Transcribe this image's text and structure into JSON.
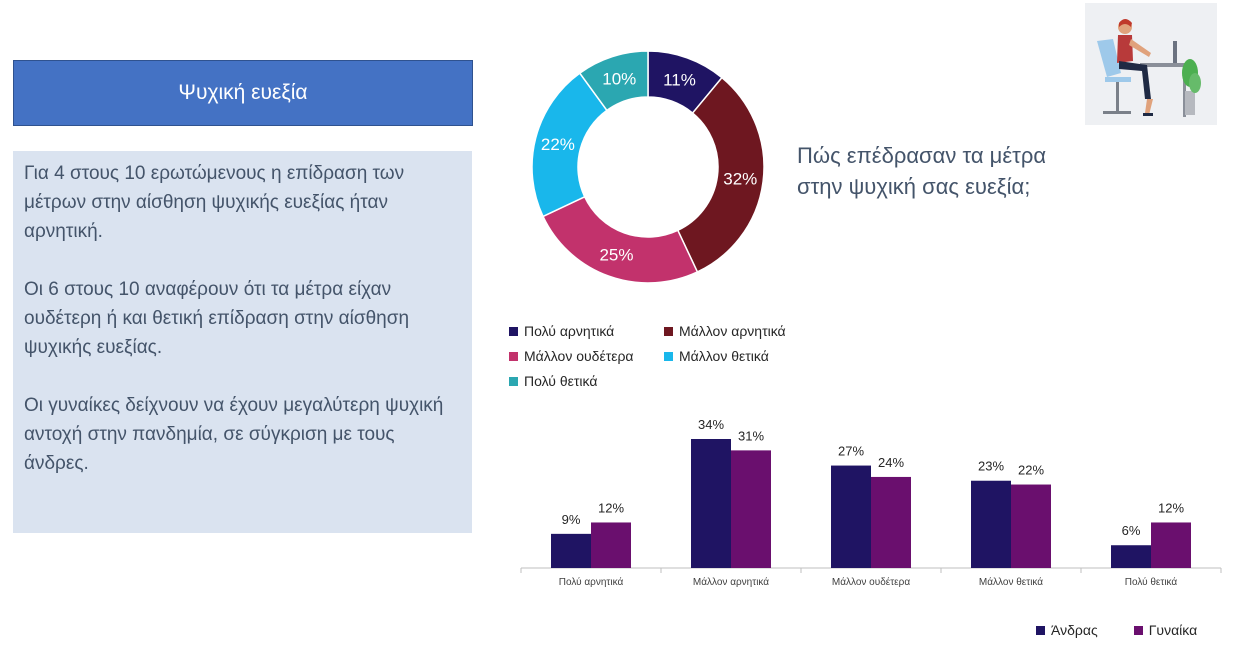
{
  "header": {
    "title": "Ψυχική ευεξία"
  },
  "summary": {
    "p1": "Για 4 στους 10 ερωτώμενους η επίδραση των μέτρων στην αίσθηση ψυχικής ευεξίας  ήταν αρνητική.",
    "p2": "Οι 6 στους 10 αναφέρουν ότι τα μέτρα είχαν ουδέτερη ή και θετική επίδραση στην αίσθηση ψυχικής ευεξίας.",
    "p3": "Οι γυναίκες δείχνουν να έχουν μεγαλύτερη ψυχική αντοχή στην πανδημία, σε σύγκριση με τους άνδρες."
  },
  "question": "Πώς επέδρασαν τα μέτρα στην ψυχική σας ευεξία;",
  "illustration": {
    "icon": "woman-at-desk-illustration"
  },
  "chart_data": [
    {
      "type": "pie",
      "variant": "donut",
      "categories": [
        "Πολύ αρνητικά",
        "Μάλλον αρνητικά",
        "Μάλλον ουδέτερα",
        "Μάλλον θετικά",
        "Πολύ θετικά"
      ],
      "values": [
        11,
        32,
        25,
        22,
        10
      ],
      "labels": [
        "11%",
        "32%",
        "25%",
        "22%",
        "10%"
      ],
      "colors": [
        "#1f1463",
        "#6e1720",
        "#c2326c",
        "#19b7eb",
        "#2ba7b1"
      ],
      "legend_placement": "bottom"
    },
    {
      "type": "bar",
      "categories": [
        "Πολύ αρνητικά",
        "Μάλλον αρνητικά",
        "Μάλλον ουδέτερα",
        "Μάλλον θετικά",
        "Πολύ θετικά"
      ],
      "series": [
        {
          "name": "Άνδρας",
          "values": [
            9,
            34,
            27,
            23,
            6
          ],
          "labels": [
            "9%",
            "34%",
            "27%",
            "23%",
            "6%"
          ],
          "color": "#1f1463"
        },
        {
          "name": "Γυναίκα",
          "values": [
            12,
            31,
            24,
            22,
            12
          ],
          "labels": [
            "12%",
            "31%",
            "24%",
            "22%",
            "12%"
          ],
          "color": "#6a0f6e"
        }
      ],
      "ylim": [
        0,
        34
      ],
      "grid": false,
      "legend_placement": "bottom-right"
    }
  ]
}
